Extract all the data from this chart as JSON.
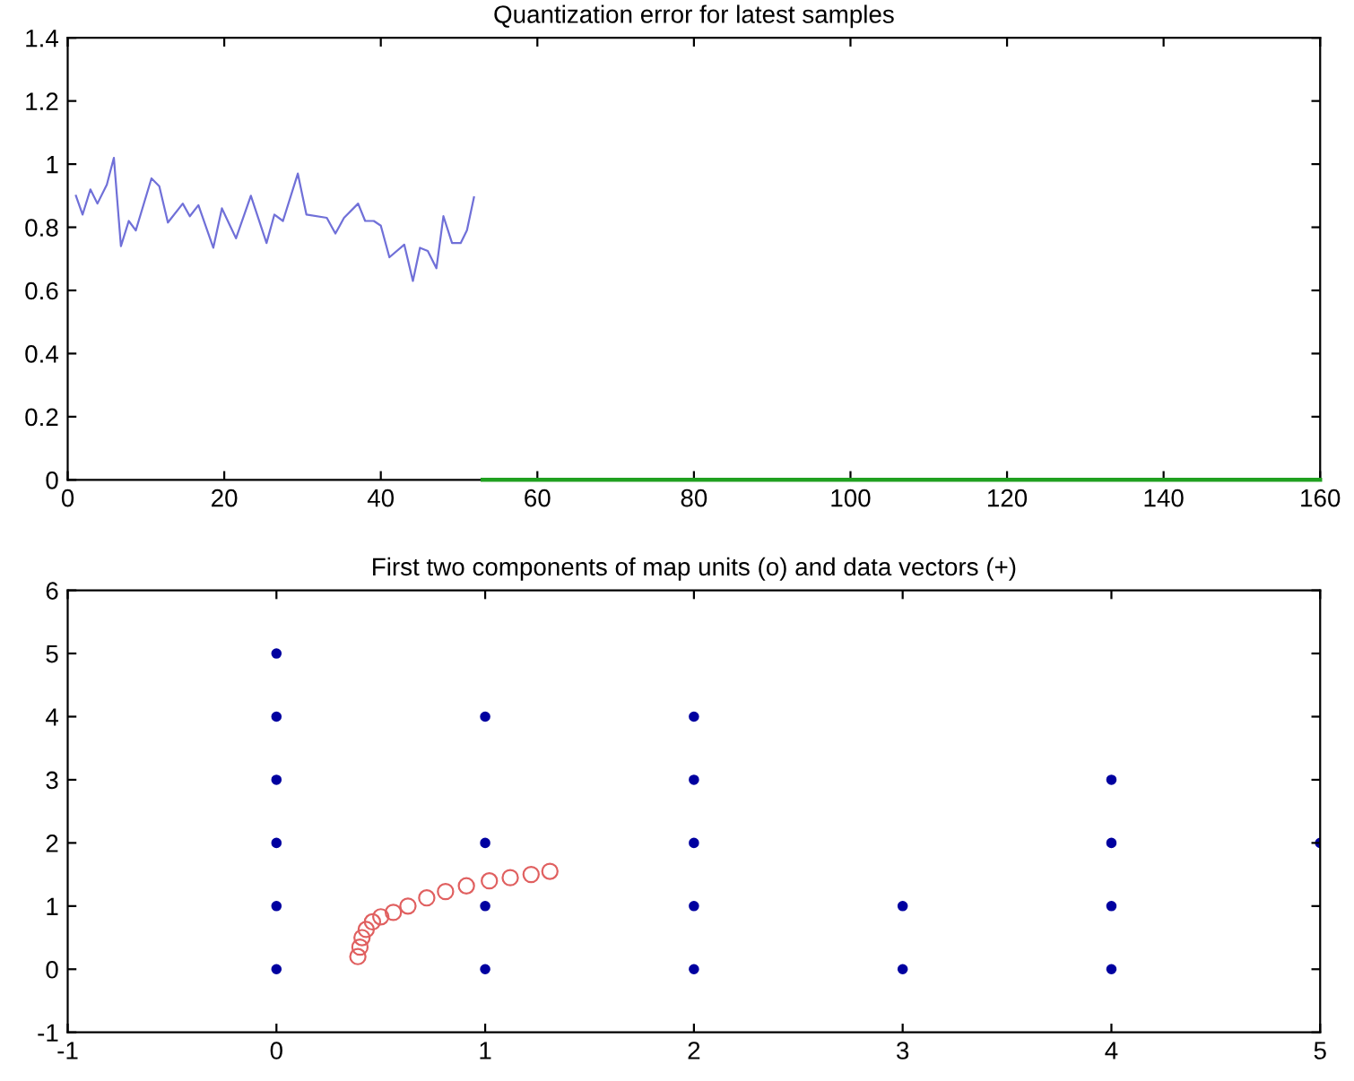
{
  "chart_data": [
    {
      "type": "line",
      "title": "Quantization error for latest samples",
      "xlim": [
        0,
        160
      ],
      "ylim": [
        0,
        1.4
      ],
      "xticks": [
        0,
        20,
        40,
        60,
        80,
        100,
        120,
        140,
        160
      ],
      "yticks": [
        0,
        0.2,
        0.4,
        0.6,
        0.8,
        1,
        1.2,
        1.4
      ],
      "grid": false,
      "marker": "none",
      "line_style": "solid",
      "series": [
        {
          "color": "#7070d8",
          "x": [
            1.05,
            1.9,
            2.9,
            3.8,
            5,
            5.9,
            6.8,
            7.8,
            8.7,
            10.7,
            11.7,
            12.8,
            14.7,
            15.6,
            16.7,
            18.6,
            19.7,
            21.5,
            23.4,
            25.4,
            26.4,
            27.5,
            29.4,
            30.5,
            33.1,
            34.2,
            35.3,
            37.1,
            38,
            39.1,
            40,
            41.1,
            43,
            44.1,
            45,
            46,
            47.1,
            48,
            49.1,
            50.2,
            51,
            51.9
          ],
          "values": [
            0.9,
            0.84,
            0.92,
            0.875,
            0.935,
            1.02,
            0.74,
            0.82,
            0.79,
            0.955,
            0.93,
            0.815,
            0.875,
            0.835,
            0.87,
            0.735,
            0.86,
            0.765,
            0.9,
            0.75,
            0.84,
            0.82,
            0.97,
            0.84,
            0.83,
            0.78,
            0.83,
            0.875,
            0.82,
            0.82,
            0.805,
            0.705,
            0.745,
            0.63,
            0.735,
            0.725,
            0.67,
            0.835,
            0.75,
            0.75,
            0.79,
            0.895
          ]
        },
        {
          "color": "#20a020",
          "x": [
            53,
            160
          ],
          "values": [
            0,
            0
          ]
        }
      ]
    },
    {
      "type": "scatter",
      "title": "First two components of map units (o) and data vectors (+)",
      "xlim": [
        -1,
        5
      ],
      "ylim": [
        -1,
        6
      ],
      "xticks": [
        -1,
        0,
        1,
        2,
        3,
        4,
        5
      ],
      "yticks": [
        -1,
        0,
        1,
        2,
        3,
        4,
        5,
        6
      ],
      "grid": false,
      "series": [
        {
          "color": "#0000a0",
          "marker": "circle",
          "x": [
            0,
            0,
            0,
            0,
            0,
            0,
            1,
            1,
            1,
            1,
            2,
            2,
            2,
            2,
            2,
            3,
            3,
            4,
            4,
            4,
            4,
            5
          ],
          "values": [
            0,
            1,
            2,
            3,
            4,
            5,
            0,
            1,
            2,
            4,
            0,
            1,
            2,
            3,
            4,
            0,
            1,
            0,
            1,
            2,
            3,
            2
          ]
        },
        {
          "color": "#e06060",
          "marker": "circle",
          "x": [
            0.39,
            0.4,
            0.41,
            0.43,
            0.46,
            0.5,
            0.56,
            0.63,
            0.72,
            0.81,
            0.91,
            1.02,
            1.12,
            1.22,
            1.31
          ],
          "values": [
            0.2,
            0.35,
            0.5,
            0.63,
            0.75,
            0.83,
            0.9,
            1.0,
            1.13,
            1.23,
            1.32,
            1.4,
            1.45,
            1.5,
            1.55
          ]
        }
      ]
    }
  ]
}
